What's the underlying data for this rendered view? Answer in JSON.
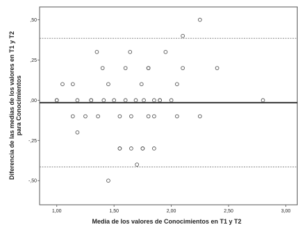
{
  "chart_data": {
    "type": "scatter",
    "xlabel": "Media de los valores de Conocimientos en T1 y T2",
    "ylabel_lines": [
      "Diferencia de las medias de los valores en T1 y T2",
      "para Conocimientos"
    ],
    "xlim": [
      0.85,
      3.1
    ],
    "ylim": [
      -0.65,
      0.58
    ],
    "x_ticks": [
      1.0,
      1.5,
      2.0,
      2.5,
      3.0
    ],
    "x_tick_labels": [
      "1,00",
      "1,50",
      "2,00",
      "2,50",
      "3,00"
    ],
    "y_ticks": [
      -0.5,
      -0.25,
      0.0,
      0.25,
      0.5
    ],
    "y_tick_labels": [
      "-,50",
      "-,25",
      ",00",
      ",25",
      ",50"
    ],
    "mean_line": -0.015,
    "upper_limit": 0.385,
    "lower_limit": -0.415,
    "grid": false,
    "colors": {
      "points": "#555555",
      "mean_line": "#333333",
      "limit_lines": "#777777",
      "frame": "#555555"
    },
    "points": [
      {
        "x": 1.0,
        "y": 0.0
      },
      {
        "x": 1.0,
        "y": 0.0
      },
      {
        "x": 1.05,
        "y": 0.1
      },
      {
        "x": 1.14,
        "y": 0.1
      },
      {
        "x": 1.14,
        "y": -0.1
      },
      {
        "x": 1.18,
        "y": 0.0
      },
      {
        "x": 1.18,
        "y": -0.2
      },
      {
        "x": 1.25,
        "y": -0.1
      },
      {
        "x": 1.3,
        "y": 0.0
      },
      {
        "x": 1.3,
        "y": 0.0
      },
      {
        "x": 1.35,
        "y": 0.3
      },
      {
        "x": 1.36,
        "y": -0.1
      },
      {
        "x": 1.4,
        "y": 0.2
      },
      {
        "x": 1.41,
        "y": 0.0
      },
      {
        "x": 1.45,
        "y": 0.1
      },
      {
        "x": 1.45,
        "y": -0.5
      },
      {
        "x": 1.5,
        "y": 0.0
      },
      {
        "x": 1.55,
        "y": -0.1
      },
      {
        "x": 1.55,
        "y": -0.3
      },
      {
        "x": 1.55,
        "y": -0.3
      },
      {
        "x": 1.6,
        "y": 0.2
      },
      {
        "x": 1.6,
        "y": 0.0
      },
      {
        "x": 1.64,
        "y": 0.3
      },
      {
        "x": 1.65,
        "y": -0.1
      },
      {
        "x": 1.65,
        "y": -0.3
      },
      {
        "x": 1.69,
        "y": 0.0
      },
      {
        "x": 1.7,
        "y": -0.4
      },
      {
        "x": 1.74,
        "y": 0.1
      },
      {
        "x": 1.75,
        "y": -0.3
      },
      {
        "x": 1.75,
        "y": -0.3
      },
      {
        "x": 1.76,
        "y": 0.0
      },
      {
        "x": 1.8,
        "y": 0.2
      },
      {
        "x": 1.8,
        "y": 0.2
      },
      {
        "x": 1.8,
        "y": -0.1
      },
      {
        "x": 1.85,
        "y": 0.0
      },
      {
        "x": 1.85,
        "y": -0.1
      },
      {
        "x": 1.85,
        "y": -0.3
      },
      {
        "x": 1.9,
        "y": 0.0
      },
      {
        "x": 1.9,
        "y": 0.0
      },
      {
        "x": 1.95,
        "y": 0.3
      },
      {
        "x": 2.0,
        "y": 0.0
      },
      {
        "x": 2.05,
        "y": 0.1
      },
      {
        "x": 2.05,
        "y": -0.1
      },
      {
        "x": 2.1,
        "y": 0.4
      },
      {
        "x": 2.1,
        "y": 0.2
      },
      {
        "x": 2.25,
        "y": 0.5
      },
      {
        "x": 2.25,
        "y": -0.1
      },
      {
        "x": 2.4,
        "y": 0.2
      },
      {
        "x": 2.8,
        "y": 0.0
      }
    ]
  }
}
